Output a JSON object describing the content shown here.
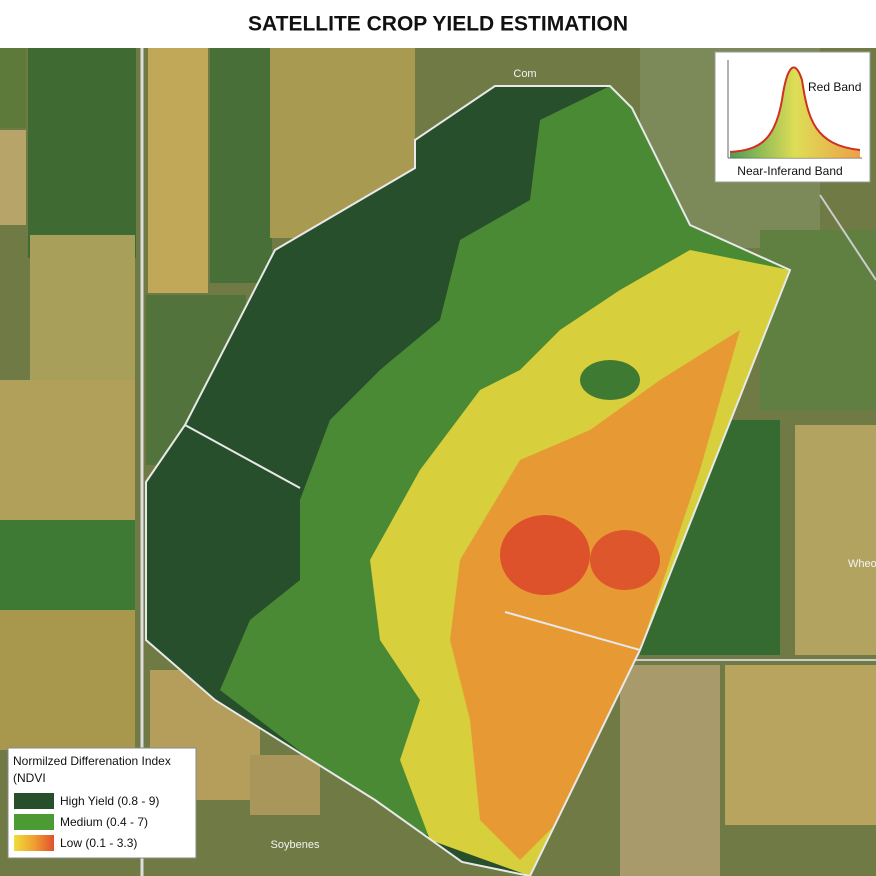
{
  "header": {
    "title": "SATELLITE CROP YIELD ESTIMATION"
  },
  "inset": {
    "red_label": "Red Band",
    "nir_label": "Near-Inferand Band"
  },
  "legend": {
    "title_lines": [
      "Normilzed Differenation Index",
      "(NDVI"
    ],
    "items": [
      {
        "label": "High Yield (0.8 - 9)"
      },
      {
        "label": "Medium (0.4 - 7)"
      },
      {
        "label": "Low   (0.1 - 3.3)"
      }
    ]
  },
  "map_labels": {
    "north": "Com",
    "east": "Wheo",
    "south": "Soybenes"
  }
}
